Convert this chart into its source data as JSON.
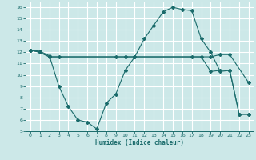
{
  "title": "",
  "xlabel": "Humidex (Indice chaleur)",
  "ylabel": "",
  "background_color": "#cce8e8",
  "grid_color": "#ffffff",
  "line_color": "#1a6b6b",
  "xlim": [
    -0.5,
    23.5
  ],
  "ylim": [
    5,
    16.5
  ],
  "xticks": [
    0,
    1,
    2,
    3,
    4,
    5,
    6,
    7,
    8,
    9,
    10,
    11,
    12,
    13,
    14,
    15,
    16,
    17,
    18,
    19,
    20,
    21,
    22,
    23
  ],
  "yticks": [
    5,
    6,
    7,
    8,
    9,
    10,
    11,
    12,
    13,
    14,
    15,
    16
  ],
  "line1_x": [
    0,
    1,
    2,
    3,
    10,
    11,
    19,
    20,
    21,
    23
  ],
  "line1_y": [
    12.2,
    12.0,
    11.6,
    11.6,
    11.6,
    11.6,
    11.6,
    11.8,
    11.8,
    9.3
  ],
  "line2_x": [
    0,
    1,
    2,
    3,
    4,
    5,
    6,
    7,
    8,
    9,
    10,
    11,
    12,
    13,
    14,
    15,
    16,
    17,
    18,
    19,
    20,
    21,
    22,
    23
  ],
  "line2_y": [
    12.2,
    12.1,
    11.7,
    9.0,
    7.2,
    6.0,
    5.8,
    5.2,
    7.5,
    8.3,
    10.4,
    11.6,
    13.2,
    14.4,
    15.6,
    16.0,
    15.8,
    15.7,
    13.2,
    12.0,
    10.3,
    10.4,
    6.5,
    6.5
  ],
  "line3_x": [
    0,
    1,
    2,
    9,
    10,
    11,
    17,
    18,
    19,
    20,
    21,
    22,
    23
  ],
  "line3_y": [
    12.2,
    12.0,
    11.6,
    11.6,
    11.6,
    11.6,
    11.6,
    11.6,
    10.3,
    10.4,
    10.4,
    6.5,
    6.5
  ]
}
